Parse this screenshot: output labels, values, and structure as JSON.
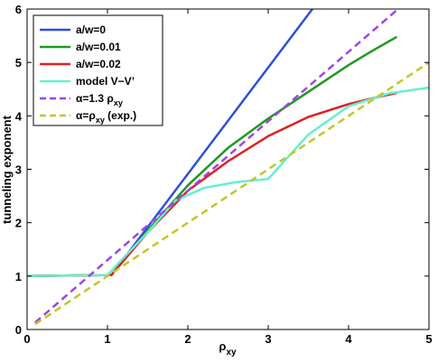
{
  "chart_data": {
    "type": "line",
    "xlabel": "ρ",
    "xlabel_sub": "xy",
    "ylabel": "tunneling exponent",
    "xlim": [
      0,
      5
    ],
    "ylim": [
      0,
      6
    ],
    "xticks": [
      "0",
      "1",
      "2",
      "3",
      "4",
      "5"
    ],
    "yticks": [
      "0",
      "1",
      "2",
      "3",
      "4",
      "5",
      "6"
    ],
    "grid": false,
    "legend_position": "top-left",
    "series": [
      {
        "name": "a/w=0",
        "color": "#2f4fdc",
        "dash": "solid",
        "x": [
          0,
          1.05,
          3.55
        ],
        "y": [
          1,
          1.02,
          6
        ]
      },
      {
        "name": "a/w=0.01",
        "color": "#1e9a1e",
        "dash": "solid",
        "x": [
          0,
          1.05,
          1.5,
          2,
          2.5,
          3,
          3.5,
          4,
          4.3,
          4.6
        ],
        "y": [
          1,
          1.02,
          1.85,
          2.7,
          3.4,
          3.95,
          4.45,
          4.95,
          5.22,
          5.48
        ]
      },
      {
        "name": "a/w=0.02",
        "color": "#e02020",
        "dash": "solid",
        "x": [
          0,
          1.05,
          1.5,
          2,
          2.5,
          3,
          3.5,
          4,
          4.3,
          4.6
        ],
        "y": [
          1,
          1.02,
          1.82,
          2.6,
          3.15,
          3.62,
          3.98,
          4.22,
          4.33,
          4.43
        ]
      },
      {
        "name": "model V−V’",
        "color": "#66efcf",
        "dash": "solid",
        "x": [
          0,
          1.0,
          1.5,
          1.85,
          2.2,
          2.6,
          3.0,
          3.5,
          4.0,
          4.5,
          5.0
        ],
        "y": [
          1,
          1.02,
          1.82,
          2.42,
          2.65,
          2.76,
          2.82,
          3.65,
          4.18,
          4.42,
          4.53
        ]
      },
      {
        "name": "α=1.3 ρ",
        "name_sub": "xy",
        "color": "#a043e8",
        "dash": "dashed",
        "x": [
          0.1,
          4.6
        ],
        "y": [
          0.13,
          5.98
        ]
      },
      {
        "name": "α=ρ",
        "name_sub": "xy",
        "name_suffix": " (exp.)",
        "color": "#c5c52a",
        "dash": "dashed",
        "x": [
          0.1,
          5.0
        ],
        "y": [
          0.1,
          5.0
        ]
      }
    ]
  }
}
